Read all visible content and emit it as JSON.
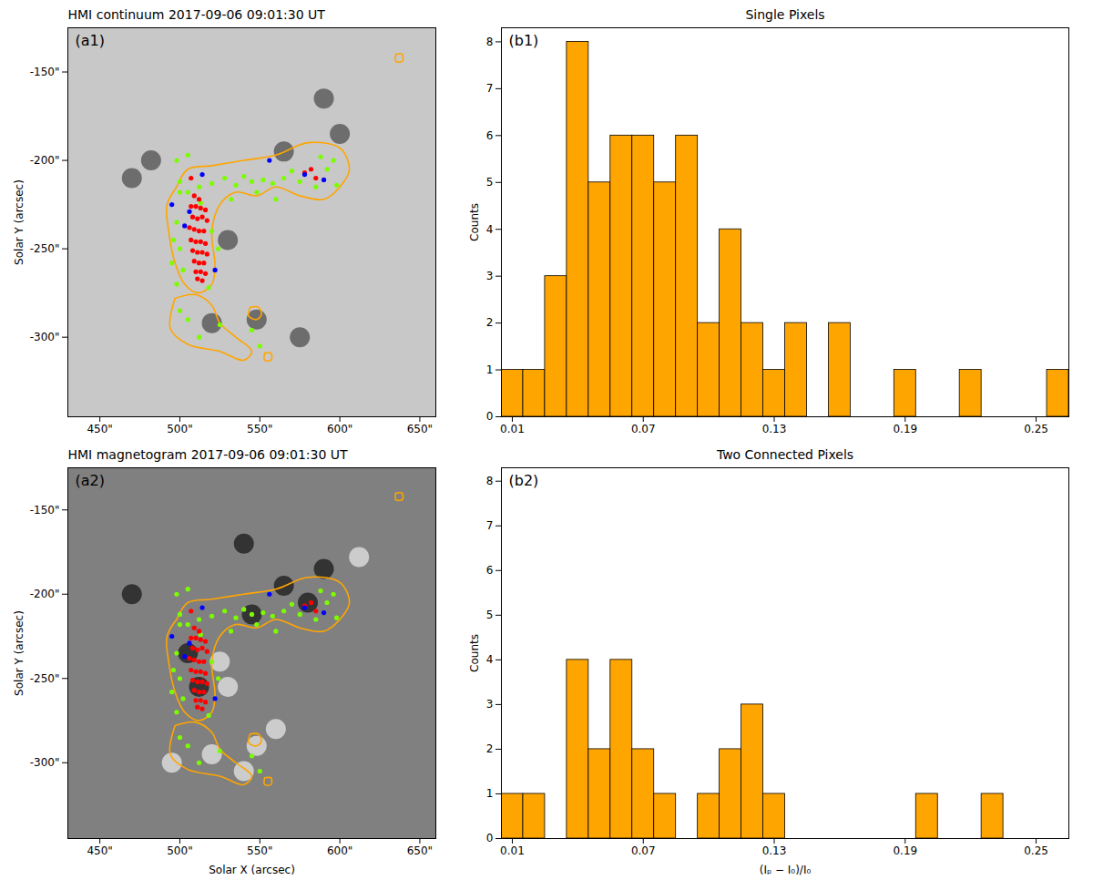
{
  "chart_data": [
    {
      "type": "scatter",
      "title": "HMI continuum 2017-09-06 09:01:30 UT",
      "annotation": "(a1)",
      "color": "#c8c8c8",
      "ylabel": "Solar Y (arcsec)",
      "xlim": [
        430,
        660
      ],
      "ylim": [
        -345,
        -125
      ],
      "xticks": [
        {
          "value": 450,
          "label": "450\""
        },
        {
          "value": 500,
          "label": "500\""
        },
        {
          "value": 550,
          "label": "550\""
        },
        {
          "value": 600,
          "label": "600\""
        },
        {
          "value": 650,
          "label": "650\""
        }
      ],
      "yticks": [
        {
          "value": -150,
          "label": "-150\""
        },
        {
          "value": -200,
          "label": "-200\""
        },
        {
          "value": -250,
          "label": "-250\""
        },
        {
          "value": -300,
          "label": "-300\""
        }
      ],
      "series": [
        {
          "type": "scatter",
          "marker": "blob",
          "color": "#303030",
          "x": [
            530,
            565,
            590,
            482,
            520,
            548,
            575,
            470,
            600
          ],
          "y": [
            -245,
            -195,
            -165,
            -200,
            -292,
            -290,
            -300,
            -210,
            -185
          ]
        },
        {
          "type": "line",
          "color": "#ffa500",
          "x": [
            498,
            505,
            520,
            540,
            560,
            580,
            600,
            606,
            600,
            590,
            575,
            560,
            548,
            535,
            525,
            520,
            522,
            520,
            512,
            503,
            497,
            493,
            492,
            498
          ],
          "y": [
            -215,
            -205,
            -203,
            -200,
            -197,
            -190,
            -193,
            -205,
            -215,
            -222,
            -220,
            -215,
            -220,
            -218,
            -225,
            -240,
            -260,
            -270,
            -275,
            -270,
            -258,
            -240,
            -225,
            -215
          ]
        },
        {
          "type": "line",
          "color": "#ffa500",
          "x": [
            497,
            510,
            520,
            525,
            535,
            545,
            540,
            525,
            505,
            494,
            497
          ],
          "y": [
            -278,
            -276,
            -282,
            -292,
            -300,
            -308,
            -313,
            -308,
            -304,
            -295,
            -278
          ]
        },
        {
          "type": "line",
          "color": "#ffa500",
          "x": [
            544,
            549,
            551,
            548,
            543,
            544
          ],
          "y": [
            -283,
            -283,
            -287,
            -290,
            -288,
            -283
          ]
        },
        {
          "type": "line",
          "color": "#ffa500",
          "x": [
            553,
            557,
            557,
            553,
            553
          ],
          "y": [
            -309,
            -309,
            -313,
            -313,
            -309
          ]
        },
        {
          "type": "line",
          "color": "#ffa500",
          "x": [
            635,
            639,
            639,
            635,
            635
          ],
          "y": [
            -140,
            -140,
            -144,
            -144,
            -140
          ]
        },
        {
          "type": "scatter",
          "color": "#7cfc00",
          "x": [
            500,
            505,
            512,
            520,
            528,
            535,
            540,
            545,
            552,
            558,
            565,
            570,
            575,
            585,
            592,
            598,
            596,
            588,
            498,
            496,
            500,
            495,
            502,
            498,
            520,
            524,
            518,
            500,
            505,
            512,
            525,
            545,
            550,
            498,
            505,
            500,
            513,
            532,
            548,
            560
          ],
          "y": [
            -212,
            -218,
            -215,
            -213,
            -210,
            -214,
            -209,
            -212,
            -211,
            -213,
            -210,
            -206,
            -212,
            -215,
            -205,
            -214,
            -200,
            -198,
            -235,
            -245,
            -250,
            -258,
            -262,
            -270,
            -240,
            -250,
            -272,
            -285,
            -290,
            -300,
            -293,
            -296,
            -305,
            -200,
            -197,
            -218,
            -224,
            -222,
            -218,
            -222
          ]
        },
        {
          "type": "scatter",
          "color": "#ff0000",
          "x": [
            507,
            510,
            513,
            516,
            508,
            511,
            514,
            517,
            506,
            509,
            512,
            515,
            507,
            510,
            513,
            516,
            508,
            511,
            514,
            517,
            509,
            512,
            515,
            510,
            513,
            516,
            511,
            514,
            507,
            582,
            578,
            585,
            509,
            512
          ],
          "y": [
            -226,
            -226,
            -227,
            -228,
            -232,
            -233,
            -232,
            -234,
            -238,
            -239,
            -240,
            -240,
            -245,
            -246,
            -246,
            -247,
            -251,
            -252,
            -252,
            -253,
            -257,
            -258,
            -258,
            -263,
            -263,
            -264,
            -267,
            -268,
            -210,
            -205,
            -207,
            -210,
            -220,
            -222
          ]
        },
        {
          "type": "scatter",
          "color": "#0000ff",
          "x": [
            495,
            514,
            556,
            503,
            522,
            578,
            590,
            506
          ],
          "y": [
            -225,
            -208,
            -200,
            -237,
            -262,
            -208,
            -211,
            -229
          ]
        }
      ]
    },
    {
      "type": "histogram",
      "title": "Single Pixels",
      "annotation": "(b1)",
      "color": "#ffa500",
      "ylabel": "Counts",
      "bins": [
        0.005,
        0.015,
        0.025,
        0.035,
        0.045,
        0.055,
        0.065,
        0.075,
        0.085,
        0.095,
        0.105,
        0.115,
        0.125,
        0.135,
        0.145,
        0.155,
        0.165,
        0.175,
        0.185,
        0.195,
        0.205,
        0.215,
        0.225,
        0.235,
        0.245,
        0.255,
        0.265
      ],
      "values": [
        1,
        1,
        3,
        8,
        5,
        6,
        6,
        5,
        6,
        2,
        4,
        2,
        1,
        2,
        0,
        2,
        0,
        0,
        1,
        0,
        0,
        1,
        0,
        0,
        0,
        1
      ],
      "xlim": [
        0.005,
        0.265
      ],
      "ylim": [
        0,
        8.3
      ],
      "xticks": [
        0.01,
        0.07,
        0.13,
        0.19,
        0.25
      ],
      "yticks": [
        0,
        1,
        2,
        3,
        4,
        5,
        6,
        7,
        8
      ]
    },
    {
      "type": "scatter",
      "title": "HMI magnetogram 2017-09-06 09:01:30 UT",
      "annotation": "(a2)",
      "color": "#808080",
      "xlabel": "Solar X (arcsec)",
      "ylabel": "Solar Y (arcsec)",
      "xlim": [
        430,
        660
      ],
      "ylim": [
        -345,
        -125
      ],
      "xticks": [
        {
          "value": 450,
          "label": "450\""
        },
        {
          "value": 500,
          "label": "500\""
        },
        {
          "value": 550,
          "label": "550\""
        },
        {
          "value": 600,
          "label": "600\""
        },
        {
          "value": 650,
          "label": "650\""
        }
      ],
      "yticks": [
        {
          "value": -150,
          "label": "-150\""
        },
        {
          "value": -200,
          "label": "-200\""
        },
        {
          "value": -250,
          "label": "-250\""
        },
        {
          "value": -300,
          "label": "-300\""
        }
      ],
      "series": [
        {
          "type": "scatter",
          "marker": "blob",
          "color": "#000000",
          "x": [
            505,
            512,
            545,
            565,
            590,
            470,
            540,
            580
          ],
          "y": [
            -235,
            -255,
            -212,
            -195,
            -185,
            -200,
            -170,
            -205
          ]
        },
        {
          "type": "scatter",
          "marker": "blob",
          "color": "#ffffff",
          "x": [
            530,
            520,
            548,
            560,
            612,
            525,
            495,
            540
          ],
          "y": [
            -255,
            -295,
            -290,
            -280,
            -178,
            -240,
            -300,
            -305
          ]
        },
        {
          "type": "line",
          "color": "#ffa500",
          "x": [
            498,
            505,
            520,
            540,
            560,
            580,
            600,
            606,
            600,
            590,
            575,
            560,
            548,
            535,
            525,
            520,
            522,
            520,
            512,
            503,
            497,
            493,
            492,
            498
          ],
          "y": [
            -215,
            -205,
            -203,
            -200,
            -197,
            -190,
            -193,
            -205,
            -215,
            -222,
            -220,
            -215,
            -220,
            -218,
            -225,
            -240,
            -260,
            -270,
            -275,
            -270,
            -258,
            -240,
            -225,
            -215
          ]
        },
        {
          "type": "line",
          "color": "#ffa500",
          "x": [
            497,
            510,
            520,
            525,
            535,
            545,
            540,
            525,
            505,
            494,
            497
          ],
          "y": [
            -278,
            -276,
            -282,
            -292,
            -300,
            -308,
            -313,
            -308,
            -304,
            -295,
            -278
          ]
        },
        {
          "type": "line",
          "color": "#ffa500",
          "x": [
            544,
            549,
            551,
            548,
            543,
            544
          ],
          "y": [
            -283,
            -283,
            -287,
            -290,
            -288,
            -283
          ]
        },
        {
          "type": "line",
          "color": "#ffa500",
          "x": [
            553,
            557,
            557,
            553,
            553
          ],
          "y": [
            -309,
            -309,
            -313,
            -313,
            -309
          ]
        },
        {
          "type": "line",
          "color": "#ffa500",
          "x": [
            635,
            639,
            639,
            635,
            635
          ],
          "y": [
            -140,
            -140,
            -144,
            -144,
            -140
          ]
        },
        {
          "type": "scatter",
          "color": "#7cfc00",
          "x": [
            500,
            505,
            512,
            520,
            528,
            535,
            540,
            545,
            552,
            558,
            565,
            570,
            575,
            585,
            592,
            598,
            596,
            588,
            498,
            496,
            500,
            495,
            502,
            498,
            520,
            524,
            518,
            500,
            505,
            512,
            525,
            545,
            550,
            498,
            505,
            500,
            513,
            532,
            548,
            560
          ],
          "y": [
            -212,
            -218,
            -215,
            -213,
            -210,
            -214,
            -209,
            -212,
            -211,
            -213,
            -210,
            -206,
            -212,
            -215,
            -205,
            -214,
            -200,
            -198,
            -235,
            -245,
            -250,
            -258,
            -262,
            -270,
            -240,
            -250,
            -272,
            -285,
            -290,
            -300,
            -293,
            -296,
            -305,
            -200,
            -197,
            -218,
            -224,
            -222,
            -218,
            -222
          ]
        },
        {
          "type": "scatter",
          "color": "#ff0000",
          "x": [
            507,
            510,
            513,
            516,
            508,
            511,
            514,
            517,
            506,
            509,
            512,
            515,
            507,
            510,
            513,
            516,
            508,
            511,
            514,
            517,
            509,
            512,
            515,
            510,
            513,
            516,
            511,
            514,
            507,
            582,
            578,
            585,
            509,
            512
          ],
          "y": [
            -226,
            -226,
            -227,
            -228,
            -232,
            -233,
            -232,
            -234,
            -238,
            -239,
            -240,
            -240,
            -245,
            -246,
            -246,
            -247,
            -251,
            -252,
            -252,
            -253,
            -257,
            -258,
            -258,
            -263,
            -263,
            -264,
            -267,
            -268,
            -210,
            -205,
            -207,
            -210,
            -220,
            -222
          ]
        },
        {
          "type": "scatter",
          "color": "#0000ff",
          "x": [
            495,
            514,
            556,
            503,
            522,
            578,
            590,
            506
          ],
          "y": [
            -225,
            -208,
            -200,
            -237,
            -262,
            -208,
            -211,
            -229
          ]
        }
      ]
    },
    {
      "type": "histogram",
      "title": "Two Connected Pixels",
      "annotation": "(b2)",
      "color": "#ffa500",
      "xlabel": "(Iₚ − I₀)/I₀",
      "ylabel": "Counts",
      "bins": [
        0.005,
        0.015,
        0.025,
        0.035,
        0.045,
        0.055,
        0.065,
        0.075,
        0.085,
        0.095,
        0.105,
        0.115,
        0.125,
        0.135,
        0.145,
        0.155,
        0.165,
        0.175,
        0.185,
        0.195,
        0.205,
        0.215,
        0.225,
        0.235,
        0.245,
        0.255,
        0.265
      ],
      "values": [
        1,
        1,
        0,
        4,
        2,
        4,
        2,
        1,
        0,
        1,
        2,
        3,
        1,
        0,
        0,
        0,
        0,
        0,
        0,
        1,
        0,
        0,
        1,
        0,
        0,
        0
      ],
      "xlim": [
        0.005,
        0.265
      ],
      "ylim": [
        0,
        8.3
      ],
      "xticks": [
        0.01,
        0.07,
        0.13,
        0.19,
        0.25
      ],
      "yticks": [
        0,
        1,
        2,
        3,
        4,
        5,
        6,
        7,
        8
      ]
    }
  ]
}
